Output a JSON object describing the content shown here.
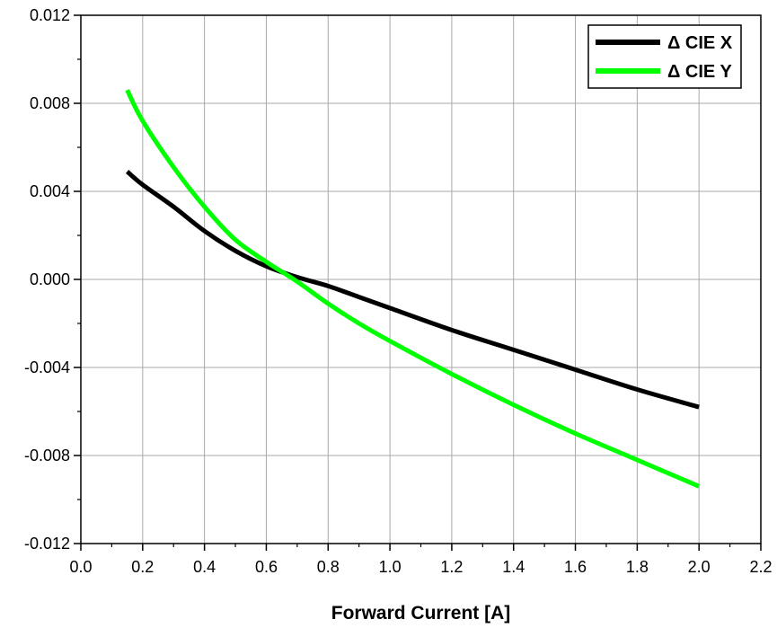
{
  "chart_data": {
    "type": "line",
    "title": "",
    "xlabel": "Forward Current [A]",
    "ylabel": "",
    "xlim": [
      0.0,
      2.2
    ],
    "ylim": [
      -0.012,
      0.012
    ],
    "x_ticks": [
      "0.0",
      "0.2",
      "0.4",
      "0.6",
      "0.8",
      "1.0",
      "1.2",
      "1.4",
      "1.6",
      "1.8",
      "2.0",
      "2.2"
    ],
    "y_ticks": [
      "0.012",
      "0.008",
      "0.004",
      "0.000",
      "-0.004",
      "-0.008",
      "-0.012"
    ],
    "grid": true,
    "legend_position": "top-right",
    "series": [
      {
        "name": "Δ CIE X",
        "color": "#000000",
        "points": [
          [
            0.15,
            0.0049
          ],
          [
            0.2,
            0.0043
          ],
          [
            0.3,
            0.0033
          ],
          [
            0.4,
            0.0022
          ],
          [
            0.5,
            0.0013
          ],
          [
            0.6,
            0.0006
          ],
          [
            0.7,
            0.0001
          ],
          [
            0.8,
            -0.0003
          ],
          [
            0.9,
            -0.0008
          ],
          [
            1.0,
            -0.0013
          ],
          [
            1.2,
            -0.0023
          ],
          [
            1.4,
            -0.0032
          ],
          [
            1.6,
            -0.0041
          ],
          [
            1.8,
            -0.005
          ],
          [
            2.0,
            -0.0058
          ]
        ]
      },
      {
        "name": "Δ CIE Y",
        "color": "#00ff00",
        "points": [
          [
            0.15,
            0.0086
          ],
          [
            0.2,
            0.0072
          ],
          [
            0.3,
            0.0051
          ],
          [
            0.4,
            0.0033
          ],
          [
            0.5,
            0.0018
          ],
          [
            0.6,
            0.0008
          ],
          [
            0.7,
            -0.0001
          ],
          [
            0.8,
            -0.0011
          ],
          [
            0.9,
            -0.002
          ],
          [
            1.0,
            -0.0028
          ],
          [
            1.2,
            -0.0043
          ],
          [
            1.4,
            -0.0057
          ],
          [
            1.6,
            -0.007
          ],
          [
            1.8,
            -0.0082
          ],
          [
            2.0,
            -0.0094
          ]
        ]
      }
    ]
  }
}
